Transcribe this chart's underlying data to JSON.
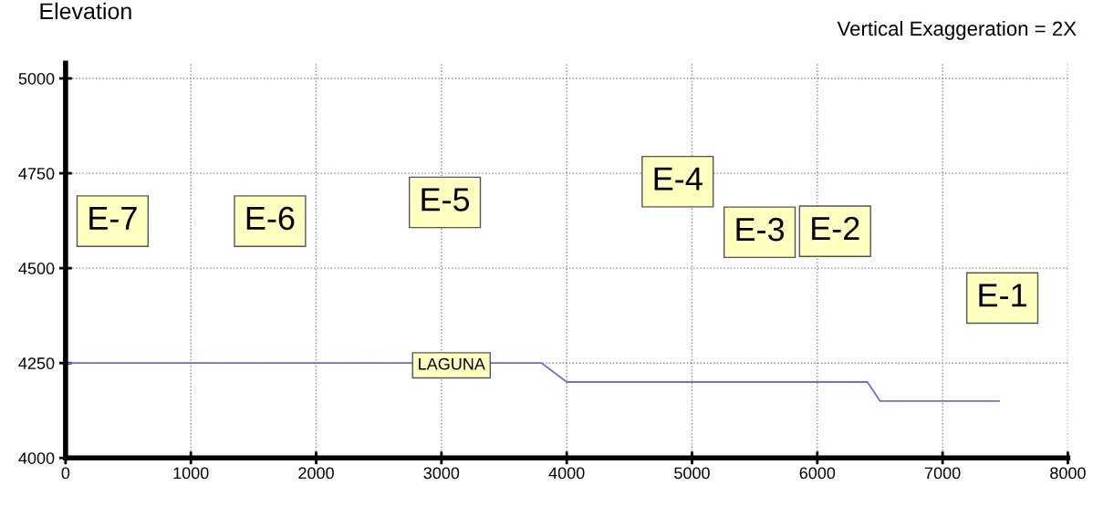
{
  "chart_data": {
    "type": "line",
    "ylabel": "Elevation",
    "x": [
      0,
      3800,
      4000,
      6400,
      6500,
      7450
    ],
    "series": [
      {
        "color": "#6f6fd8",
        "values": [
          4250,
          4250,
          4200,
          4200,
          4150,
          4150
        ]
      }
    ],
    "xlim": [
      0,
      8000
    ],
    "xticks": [
      0,
      1000,
      2000,
      3000,
      4000,
      5000,
      6000,
      7000,
      8000
    ],
    "ylim": [
      4000,
      5040
    ],
    "yticks": [
      4000,
      4250,
      4500,
      4750,
      5000
    ],
    "grid": true,
    "marker": "none",
    "line_style": "solid",
    "annotations": [
      "Vertical Exaggeration = 2X",
      "E-7",
      "E-6",
      "E-5",
      "E-4",
      "E-3",
      "E-2",
      "E-1",
      "LAGUNA"
    ]
  }
}
